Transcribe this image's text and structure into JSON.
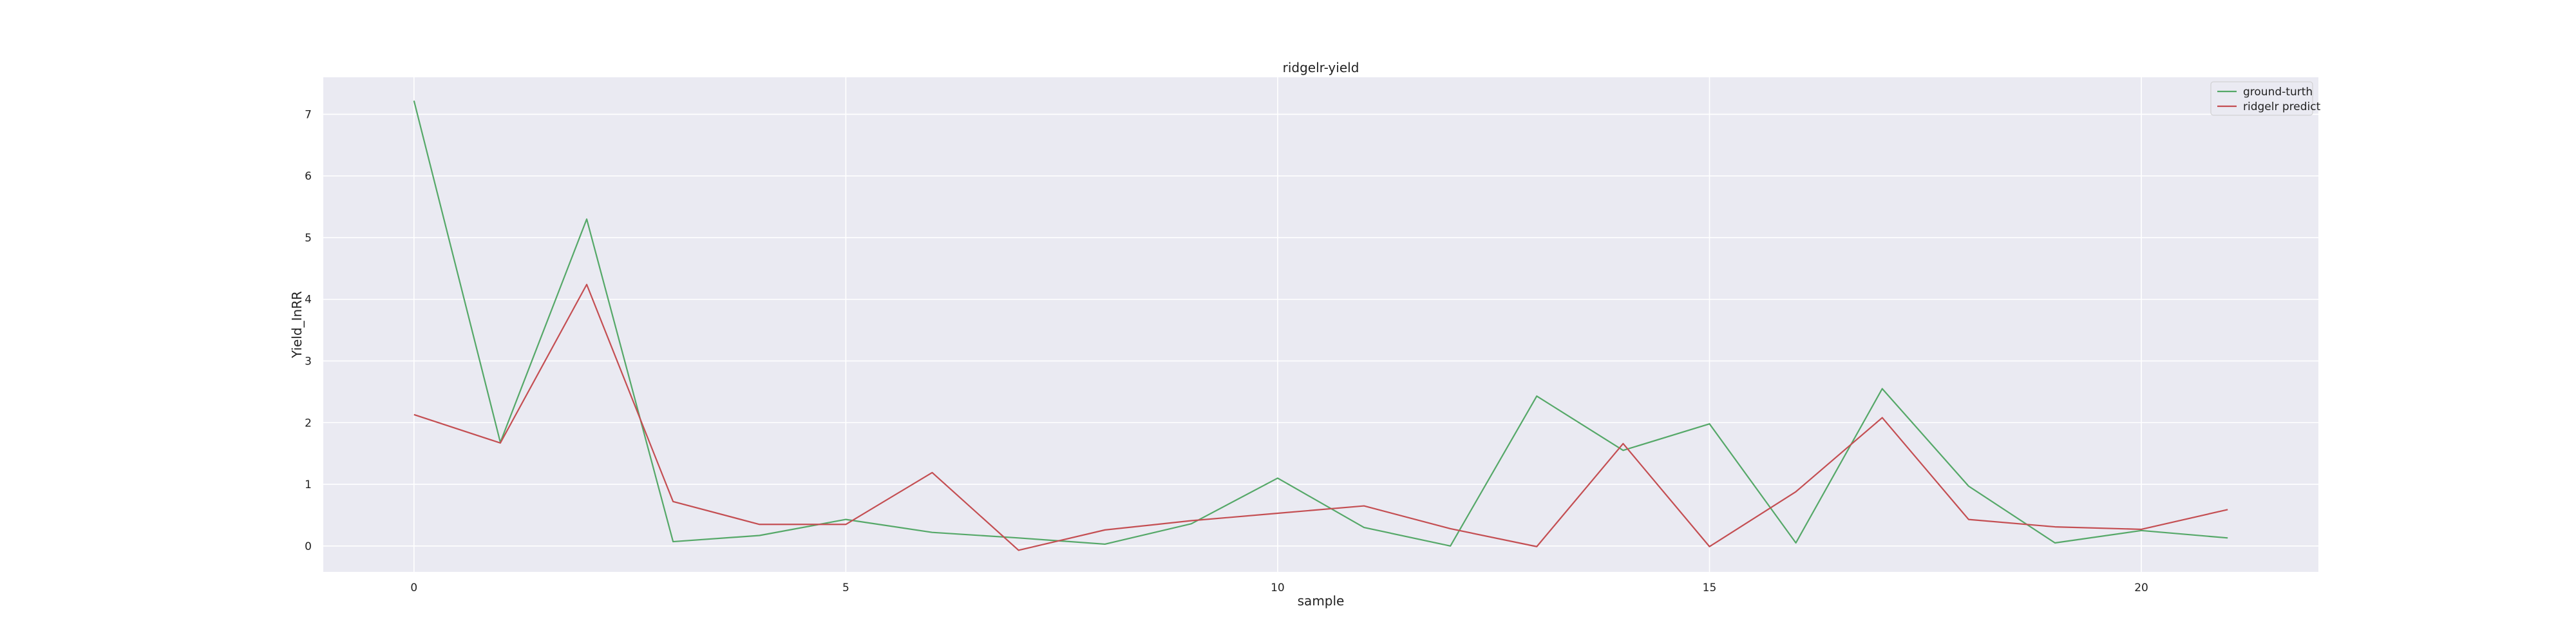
{
  "chart_data": {
    "type": "line",
    "title": "ridgelr-yield",
    "xlabel": "sample",
    "ylabel": "Yield_InRR",
    "xlim": [
      -1.05,
      22.05
    ],
    "ylim": [
      -0.42,
      7.6
    ],
    "xticks": [
      0,
      5,
      10,
      15,
      20
    ],
    "yticks": [
      0,
      1,
      2,
      3,
      4,
      5,
      6,
      7
    ],
    "grid": true,
    "legend": "top-right",
    "x": [
      0,
      1,
      2,
      3,
      4,
      5,
      6,
      7,
      8,
      9,
      10,
      11,
      12,
      13,
      14,
      15,
      16,
      17,
      18,
      19,
      20,
      21
    ],
    "series": [
      {
        "name": "ground-turth",
        "color": "#55a868",
        "values": [
          7.22,
          1.68,
          5.3,
          0.07,
          0.17,
          0.43,
          0.22,
          0.13,
          0.03,
          0.36,
          1.1,
          0.3,
          0.0,
          2.43,
          1.55,
          1.98,
          0.05,
          2.55,
          0.97,
          0.05,
          0.25,
          0.13
        ]
      },
      {
        "name": "ridgelr predict",
        "color": "#c44e52",
        "values": [
          2.13,
          1.67,
          4.24,
          0.72,
          0.35,
          0.35,
          1.19,
          -0.07,
          0.26,
          0.41,
          0.53,
          0.65,
          0.28,
          -0.01,
          1.66,
          -0.01,
          0.88,
          2.08,
          0.43,
          0.31,
          0.27,
          0.59
        ]
      }
    ]
  }
}
